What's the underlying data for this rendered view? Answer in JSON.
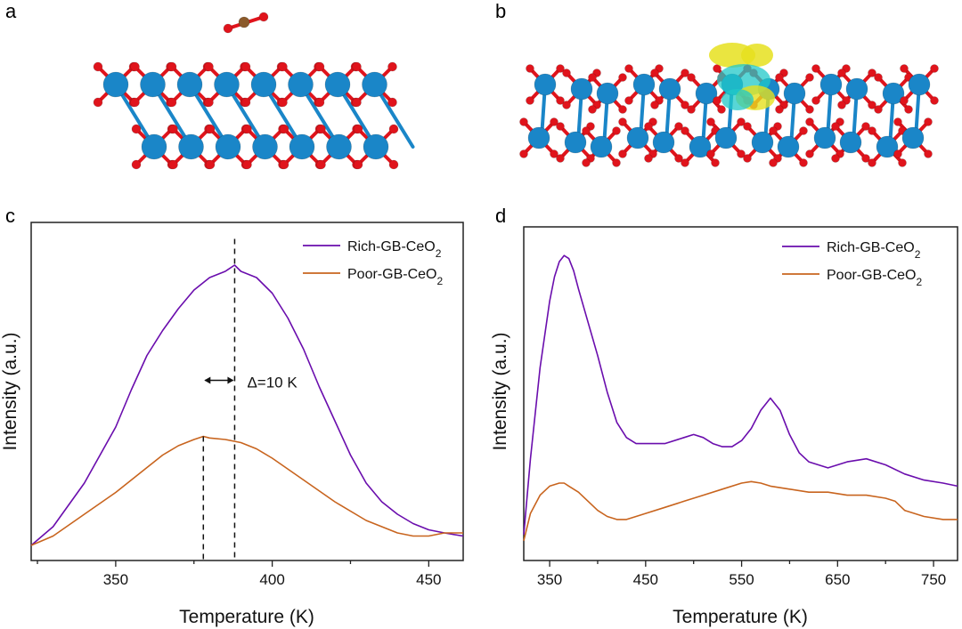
{
  "panels": {
    "a": {
      "letter": "a"
    },
    "b": {
      "letter": "b"
    },
    "c": {
      "letter": "c"
    },
    "d": {
      "letter": "d"
    }
  },
  "colors": {
    "rich": "#6a0dad",
    "poor": "#c8641e",
    "ce_atom": "#1a86c8",
    "o_atom": "#e0141c",
    "c_atom": "#8b5a2b",
    "isosurface_yellow": "#e6e01e",
    "isosurface_cyan": "#20c8c8"
  },
  "chart_data": [
    {
      "panel": "c",
      "type": "line",
      "title": "",
      "xlabel": "Temperature (K)",
      "ylabel": "Intensity (a.u.)",
      "xlim": [
        323,
        461
      ],
      "ylim": [
        0,
        1
      ],
      "xticks": [
        350,
        400,
        450
      ],
      "y_tick_labels": false,
      "legend_position": "top-right",
      "series": [
        {
          "name": "Rich-GB-CeO2",
          "legend_base": "Rich-GB-CeO",
          "legend_sub": "2",
          "color_key": "rich",
          "x": [
            323,
            330,
            340,
            350,
            355,
            360,
            365,
            370,
            375,
            380,
            385,
            388,
            390,
            395,
            400,
            405,
            410,
            415,
            420,
            425,
            430,
            435,
            440,
            445,
            450,
            455,
            461
          ],
          "y": [
            0.02,
            0.08,
            0.22,
            0.4,
            0.52,
            0.63,
            0.71,
            0.78,
            0.84,
            0.88,
            0.9,
            0.92,
            0.9,
            0.88,
            0.83,
            0.75,
            0.65,
            0.53,
            0.42,
            0.31,
            0.22,
            0.16,
            0.12,
            0.09,
            0.07,
            0.06,
            0.05
          ]
        },
        {
          "name": "Poor-GB-CeO2",
          "legend_base": "Poor-GB-CeO",
          "legend_sub": "2",
          "color_key": "poor",
          "x": [
            323,
            330,
            340,
            350,
            360,
            365,
            370,
            375,
            378,
            380,
            385,
            390,
            395,
            400,
            410,
            420,
            430,
            440,
            445,
            450,
            455,
            461
          ],
          "y": [
            0.02,
            0.05,
            0.12,
            0.19,
            0.27,
            0.31,
            0.34,
            0.36,
            0.37,
            0.365,
            0.36,
            0.35,
            0.33,
            0.3,
            0.23,
            0.16,
            0.1,
            0.06,
            0.05,
            0.05,
            0.06,
            0.06
          ]
        }
      ],
      "annotations": {
        "delta_text": "Δ=10 K",
        "vlines": [
          378,
          388
        ],
        "vline_top": [
          0.37,
          0.97
        ],
        "arrow_y": 0.55
      }
    },
    {
      "panel": "d",
      "type": "line",
      "title": "",
      "xlabel": "Temperature (K)",
      "ylabel": "Intensity (a.u.)",
      "xlim": [
        323,
        775
      ],
      "ylim": [
        0,
        1
      ],
      "xticks": [
        350,
        450,
        550,
        650,
        750
      ],
      "y_tick_labels": false,
      "legend_position": "top-right",
      "series": [
        {
          "name": "Rich-GB-CeO2",
          "legend_base": "Rich-GB-CeO",
          "legend_sub": "2",
          "color_key": "rich",
          "x": [
            323,
            330,
            340,
            350,
            355,
            360,
            365,
            370,
            375,
            380,
            390,
            400,
            410,
            420,
            430,
            440,
            450,
            470,
            490,
            500,
            510,
            520,
            530,
            540,
            550,
            560,
            570,
            580,
            590,
            600,
            610,
            620,
            640,
            660,
            680,
            700,
            720,
            740,
            760,
            775
          ],
          "y": [
            0.05,
            0.3,
            0.6,
            0.82,
            0.9,
            0.95,
            0.97,
            0.96,
            0.92,
            0.86,
            0.75,
            0.64,
            0.52,
            0.42,
            0.37,
            0.35,
            0.35,
            0.35,
            0.37,
            0.38,
            0.37,
            0.35,
            0.34,
            0.34,
            0.36,
            0.4,
            0.46,
            0.5,
            0.46,
            0.38,
            0.32,
            0.29,
            0.27,
            0.29,
            0.3,
            0.28,
            0.25,
            0.23,
            0.22,
            0.21
          ]
        },
        {
          "name": "Poor-GB-CeO2",
          "legend_base": "Poor-GB-CeO",
          "legend_sub": "2",
          "color_key": "poor",
          "x": [
            323,
            330,
            340,
            350,
            360,
            365,
            370,
            380,
            390,
            400,
            410,
            420,
            430,
            440,
            450,
            470,
            490,
            510,
            530,
            550,
            560,
            570,
            580,
            600,
            620,
            640,
            660,
            680,
            700,
            710,
            720,
            740,
            760,
            775
          ],
          "y": [
            0.03,
            0.12,
            0.18,
            0.21,
            0.22,
            0.22,
            0.21,
            0.19,
            0.16,
            0.13,
            0.11,
            0.1,
            0.1,
            0.11,
            0.12,
            0.14,
            0.16,
            0.18,
            0.2,
            0.22,
            0.225,
            0.22,
            0.21,
            0.2,
            0.19,
            0.19,
            0.18,
            0.18,
            0.17,
            0.16,
            0.13,
            0.11,
            0.1,
            0.1
          ]
        }
      ]
    }
  ]
}
